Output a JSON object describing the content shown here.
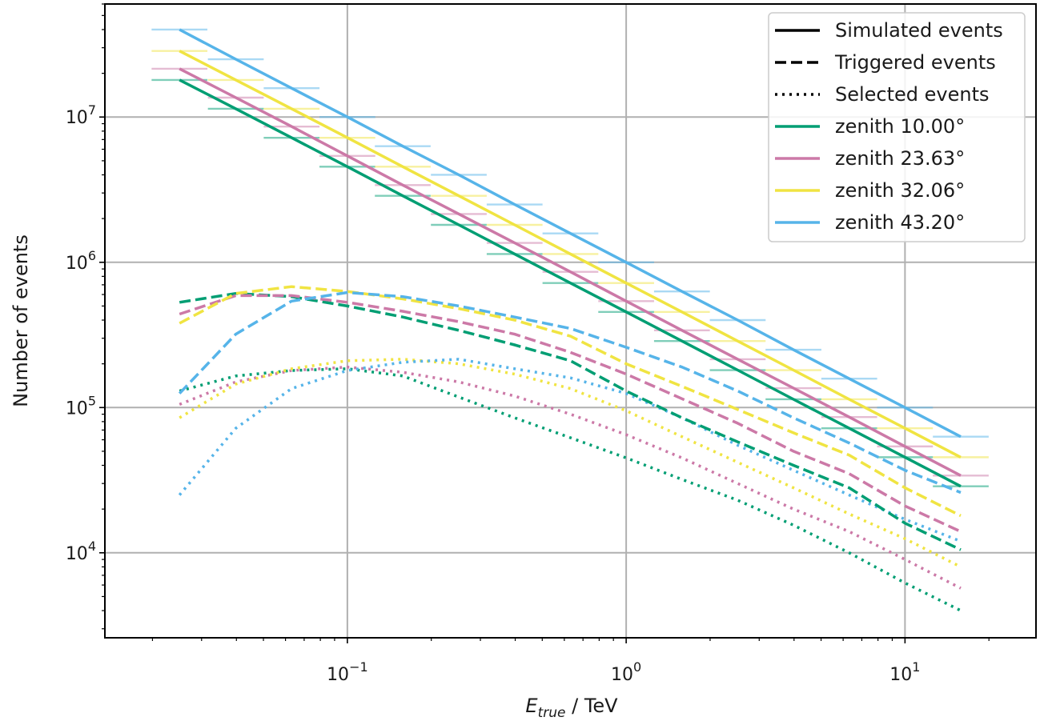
{
  "chart_data": {
    "type": "line",
    "x_scale": "log",
    "y_scale": "log",
    "xlim": [
      0.0135,
      29.5
    ],
    "ylim": [
      2600,
      60000000
    ],
    "grid": true,
    "xlabel_main": "E",
    "xlabel_sub": "true",
    "xlabel_unit": " / TeV",
    "ylabel": "Number of events",
    "x_ticks": [
      {
        "value": 0.1,
        "base": "10",
        "exp": "−1"
      },
      {
        "value": 1,
        "base": "10",
        "exp": "0"
      },
      {
        "value": 10,
        "base": "10",
        "exp": "1"
      }
    ],
    "y_ticks": [
      {
        "value": 10000,
        "base": "10",
        "exp": "4"
      },
      {
        "value": 100000,
        "base": "10",
        "exp": "5"
      },
      {
        "value": 1000000,
        "base": "10",
        "exp": "6"
      },
      {
        "value": 10000000,
        "base": "10",
        "exp": "7"
      }
    ],
    "legend_position": "top-right",
    "legend_styles": [
      {
        "label": "Simulated events",
        "style": "solid"
      },
      {
        "label": "Triggered events",
        "style": "dashed"
      },
      {
        "label": "Selected events",
        "style": "dotted"
      }
    ],
    "x": [
      0.025,
      0.0398,
      0.0631,
      0.1,
      0.158,
      0.251,
      0.398,
      0.631,
      1.0,
      1.585,
      2.512,
      3.981,
      6.31,
      10.0,
      15.85
    ],
    "series": [
      {
        "name": "zenith 10.00°",
        "color": "#009e73",
        "simulated": [
          18000000,
          11400000,
          7200000,
          4550000,
          2870000,
          1810000,
          1140000,
          720000,
          455000,
          287000,
          181000,
          114000,
          72000,
          45500,
          28700
        ],
        "triggered": [
          530000,
          610000,
          580000,
          500000,
          420000,
          340000,
          270000,
          210000,
          130000,
          85000,
          58000,
          40000,
          28000,
          16000,
          10500
        ],
        "selected": [
          130000,
          165000,
          180000,
          185000,
          165000,
          118000,
          85000,
          62000,
          45000,
          32000,
          23000,
          15500,
          10000,
          6200,
          4000
        ]
      },
      {
        "name": "zenith 23.63°",
        "color": "#cc79a7",
        "simulated": [
          21500000,
          13600000,
          8600000,
          5400000,
          3400000,
          2150000,
          1360000,
          860000,
          540000,
          340000,
          215000,
          136000,
          86000,
          54000,
          34000
        ],
        "triggered": [
          440000,
          590000,
          590000,
          530000,
          460000,
          390000,
          320000,
          240000,
          170000,
          115000,
          78000,
          50000,
          35000,
          21000,
          14000
        ],
        "selected": [
          105000,
          150000,
          180000,
          190000,
          175000,
          150000,
          120000,
          90000,
          65000,
          45000,
          30000,
          20000,
          14000,
          9000,
          5700
        ]
      },
      {
        "name": "zenith 32.06°",
        "color": "#f0e442",
        "simulated": [
          28500000,
          18000000,
          11400000,
          7200000,
          4550000,
          2870000,
          1810000,
          1140000,
          720000,
          455000,
          287000,
          181000,
          114000,
          72000,
          45500
        ],
        "triggered": [
          380000,
          610000,
          680000,
          630000,
          560000,
          480000,
          400000,
          310000,
          200000,
          140000,
          97000,
          67000,
          47000,
          28000,
          18000
        ],
        "selected": [
          85000,
          145000,
          185000,
          210000,
          215000,
          200000,
          170000,
          135000,
          95000,
          63000,
          42000,
          28000,
          18500,
          12500,
          8000
        ]
      },
      {
        "name": "zenith 43.20°",
        "color": "#56b4e9",
        "simulated": [
          40000000,
          25000000,
          15800000,
          10000000,
          6300000,
          4000000,
          2500000,
          1580000,
          1000000,
          630000,
          400000,
          250000,
          158000,
          100000,
          63000
        ],
        "triggered": [
          125000,
          320000,
          540000,
          620000,
          580000,
          500000,
          420000,
          350000,
          260000,
          190000,
          130000,
          85000,
          57000,
          37000,
          26000
        ],
        "selected": [
          25000,
          72000,
          135000,
          180000,
          205000,
          215000,
          185000,
          160000,
          125000,
          85000,
          55000,
          37000,
          25000,
          17000,
          12000
        ]
      }
    ]
  }
}
